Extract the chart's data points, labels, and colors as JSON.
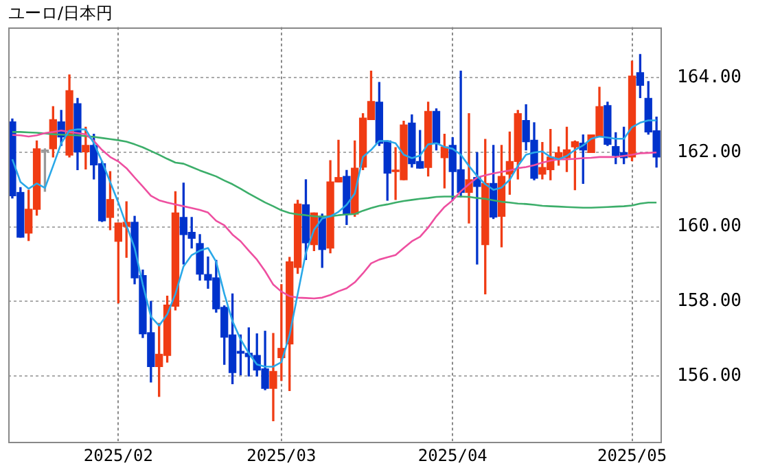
{
  "chart_data": {
    "type": "candlestick",
    "title": "ユーロ/日本円",
    "categories": [
      null,
      null,
      null,
      null,
      null,
      null,
      null,
      null,
      null,
      null,
      null,
      null,
      null,
      "2025/02",
      null,
      null,
      null,
      null,
      null,
      null,
      null,
      null,
      null,
      null,
      null,
      null,
      null,
      null,
      null,
      null,
      null,
      null,
      null,
      "2025/03",
      null,
      null,
      null,
      null,
      null,
      null,
      null,
      null,
      null,
      null,
      null,
      null,
      null,
      null,
      null,
      null,
      null,
      null,
      null,
      null,
      "2025/04",
      null,
      null,
      null,
      null,
      null,
      null,
      null,
      null,
      null,
      null,
      null,
      null,
      null,
      null,
      null,
      null,
      null,
      null,
      null,
      null,
      null,
      "2025/05",
      null,
      null,
      null
    ],
    "ohlc": [
      [
        162.81,
        162.89,
        160.77,
        160.83
      ],
      [
        160.92,
        161.05,
        159.72,
        159.72
      ],
      [
        159.83,
        160.98,
        159.63,
        160.47
      ],
      [
        160.47,
        162.3,
        160.31,
        162.09
      ],
      [
        162.02,
        162.09,
        160.95,
        162.02
      ],
      [
        162.09,
        163.22,
        161.87,
        162.87
      ],
      [
        162.81,
        163.12,
        162.18,
        162.41
      ],
      [
        161.92,
        164.07,
        161.87,
        163.65
      ],
      [
        163.3,
        163.44,
        161.53,
        162.01
      ],
      [
        162.01,
        162.67,
        161.55,
        162.18
      ],
      [
        162.18,
        162.48,
        161.28,
        161.66
      ],
      [
        161.69,
        161.75,
        160.14,
        160.16
      ],
      [
        160.25,
        161.48,
        159.92,
        160.73
      ],
      [
        159.61,
        160.1,
        157.96,
        160.1
      ],
      [
        160.01,
        160.67,
        159.18,
        160.12
      ],
      [
        160.12,
        160.28,
        158.47,
        158.63
      ],
      [
        158.69,
        158.84,
        157.03,
        157.13
      ],
      [
        157.16,
        158.0,
        155.84,
        156.25
      ],
      [
        156.25,
        157.41,
        155.45,
        156.58
      ],
      [
        156.55,
        158.14,
        156.37,
        157.9
      ],
      [
        157.87,
        160.94,
        157.77,
        160.37
      ],
      [
        160.25,
        161.17,
        159.0,
        159.79
      ],
      [
        159.85,
        160.25,
        159.43,
        159.69
      ],
      [
        159.55,
        159.79,
        158.57,
        158.73
      ],
      [
        158.72,
        159.19,
        158.35,
        158.57
      ],
      [
        158.63,
        159.1,
        157.71,
        157.8
      ],
      [
        157.84,
        157.88,
        156.31,
        157.04
      ],
      [
        157.1,
        158.2,
        155.79,
        156.09
      ],
      [
        156.66,
        157.1,
        156.03,
        156.61
      ],
      [
        156.61,
        157.29,
        156.0,
        156.52
      ],
      [
        156.55,
        157.13,
        156.0,
        156.16
      ],
      [
        156.19,
        157.2,
        155.63,
        155.67
      ],
      [
        155.67,
        157.14,
        154.8,
        156.12
      ],
      [
        156.49,
        158.45,
        155.88,
        156.74
      ],
      [
        156.86,
        159.18,
        155.61,
        159.06
      ],
      [
        158.91,
        160.71,
        158.75,
        160.61
      ],
      [
        160.59,
        161.26,
        159.12,
        159.57
      ],
      [
        159.52,
        160.37,
        159.36,
        160.37
      ],
      [
        160.28,
        160.34,
        158.91,
        159.39
      ],
      [
        159.43,
        161.77,
        159.3,
        161.2
      ],
      [
        161.2,
        162.32,
        161.2,
        161.32
      ],
      [
        161.35,
        161.51,
        160.06,
        160.34
      ],
      [
        160.34,
        162.3,
        160.28,
        161.57
      ],
      [
        161.6,
        163.03,
        161.53,
        162.91
      ],
      [
        162.87,
        164.17,
        162.87,
        163.36
      ],
      [
        163.34,
        163.87,
        162.18,
        162.24
      ],
      [
        162.3,
        162.3,
        160.71,
        161.44
      ],
      [
        161.48,
        162.12,
        160.73,
        161.52
      ],
      [
        161.26,
        162.83,
        161.26,
        162.73
      ],
      [
        162.78,
        163.0,
        161.6,
        161.69
      ],
      [
        161.75,
        162.58,
        161.57,
        161.57
      ],
      [
        161.59,
        163.34,
        161.36,
        163.09
      ],
      [
        163.09,
        163.16,
        162.06,
        162.24
      ],
      [
        161.85,
        162.48,
        161.04,
        162.14
      ],
      [
        162.18,
        162.39,
        160.71,
        161.48
      ],
      [
        161.53,
        164.17,
        160.8,
        160.92
      ],
      [
        160.92,
        163.03,
        160.1,
        161.26
      ],
      [
        161.32,
        161.99,
        159.0,
        161.08
      ],
      [
        159.52,
        162.34,
        158.2,
        161.16
      ],
      [
        161.16,
        162.18,
        160.22,
        160.26
      ],
      [
        160.28,
        162.18,
        159.46,
        161.35
      ],
      [
        161.41,
        162.54,
        160.87,
        161.75
      ],
      [
        161.75,
        163.12,
        161.28,
        163.03
      ],
      [
        162.85,
        163.27,
        162.06,
        162.28
      ],
      [
        162.32,
        162.79,
        161.26,
        161.3
      ],
      [
        161.41,
        162.26,
        161.28,
        161.59
      ],
      [
        161.53,
        162.61,
        161.26,
        161.87
      ],
      [
        161.81,
        162.14,
        161.65,
        161.99
      ],
      [
        161.85,
        162.67,
        161.48,
        162.06
      ],
      [
        162.14,
        162.3,
        160.99,
        162.28
      ],
      [
        162.24,
        162.46,
        161.16,
        162.06
      ],
      [
        161.99,
        162.46,
        161.99,
        162.46
      ],
      [
        162.42,
        163.74,
        162.42,
        163.22
      ],
      [
        163.25,
        163.34,
        162.18,
        162.21
      ],
      [
        162.15,
        162.52,
        161.69,
        161.91
      ],
      [
        161.99,
        162.67,
        161.69,
        161.85
      ],
      [
        161.87,
        164.44,
        161.77,
        164.04
      ],
      [
        164.13,
        164.62,
        163.46,
        163.79
      ],
      [
        163.44,
        163.89,
        162.48,
        162.54
      ],
      [
        162.57,
        162.94,
        161.6,
        161.87
      ]
    ],
    "colors": [
      "#0033cc",
      "#0033cc",
      "#f03c14",
      "#f03c14",
      "#999999",
      "#f03c14",
      "#0033cc",
      "#f03c14",
      "#0033cc",
      "#f03c14",
      "#0033cc",
      "#0033cc",
      "#f03c14",
      "#f03c14",
      "#f03c14",
      "#0033cc",
      "#0033cc",
      "#0033cc",
      "#f03c14",
      "#f03c14",
      "#f03c14",
      "#0033cc",
      "#0033cc",
      "#0033cc",
      "#0033cc",
      "#0033cc",
      "#0033cc",
      "#0033cc",
      "#0033cc",
      "#0033cc",
      "#0033cc",
      "#0033cc",
      "#f03c14",
      "#f03c14",
      "#f03c14",
      "#f03c14",
      "#0033cc",
      "#f03c14",
      "#0033cc",
      "#f03c14",
      "#f03c14",
      "#0033cc",
      "#f03c14",
      "#f03c14",
      "#f03c14",
      "#0033cc",
      "#0033cc",
      "#f03c14",
      "#f03c14",
      "#0033cc",
      "#0033cc",
      "#f03c14",
      "#0033cc",
      "#f03c14",
      "#0033cc",
      "#0033cc",
      "#f03c14",
      "#0033cc",
      "#f03c14",
      "#0033cc",
      "#f03c14",
      "#f03c14",
      "#f03c14",
      "#0033cc",
      "#0033cc",
      "#f03c14",
      "#f03c14",
      "#f03c14",
      "#f03c14",
      "#f03c14",
      "#0033cc",
      "#f03c14",
      "#f03c14",
      "#0033cc",
      "#0033cc",
      "#0033cc",
      "#f03c14",
      "#0033cc",
      "#0033cc",
      "#0033cc"
    ],
    "series": [
      {
        "type": "line",
        "color": "#2aa8e8",
        "values": [
          161.81,
          161.2,
          161.02,
          161.16,
          161.04,
          161.63,
          162.24,
          162.58,
          162.61,
          162.61,
          162.24,
          161.75,
          161.2,
          160.65,
          160.04,
          159.43,
          158.45,
          157.59,
          157.35,
          157.65,
          158.2,
          158.94,
          159.24,
          159.36,
          159.43,
          159.06,
          158.2,
          157.47,
          156.98,
          156.61,
          156.31,
          156.25,
          156.25,
          156.37,
          157.1,
          158.2,
          159.3,
          159.92,
          160.22,
          160.28,
          160.4,
          160.59,
          160.89,
          161.87,
          162.06,
          162.3,
          162.3,
          162.24,
          161.93,
          161.84,
          161.91,
          162.21,
          162.24,
          162.14,
          162.09,
          161.93,
          161.63,
          161.36,
          161.14,
          160.99,
          161.05,
          161.26,
          161.63,
          161.93,
          161.99,
          162.02,
          161.87,
          161.81,
          161.9,
          162.06,
          162.18,
          162.36,
          162.42,
          162.39,
          162.36,
          162.36,
          162.67,
          162.79,
          162.85,
          162.85
        ]
      },
      {
        "type": "line",
        "color": "#ee4fa0",
        "values": [
          162.46,
          162.45,
          162.42,
          162.45,
          162.51,
          162.54,
          162.58,
          162.54,
          162.51,
          162.48,
          162.3,
          162.06,
          161.87,
          161.75,
          161.57,
          161.32,
          161.08,
          160.83,
          160.71,
          160.65,
          160.6,
          160.55,
          160.5,
          160.45,
          160.38,
          160.16,
          160.04,
          159.79,
          159.61,
          159.36,
          159.12,
          158.81,
          158.45,
          158.26,
          158.14,
          158.1,
          158.09,
          158.08,
          158.1,
          158.17,
          158.27,
          158.35,
          158.51,
          158.75,
          159.02,
          159.12,
          159.18,
          159.24,
          159.43,
          159.61,
          159.73,
          159.98,
          160.28,
          160.53,
          160.71,
          160.95,
          161.14,
          161.32,
          161.38,
          161.43,
          161.47,
          161.51,
          161.57,
          161.6,
          161.65,
          161.72,
          161.77,
          161.81,
          161.81,
          161.82,
          161.84,
          161.85,
          161.87,
          161.87,
          161.87,
          161.9,
          161.93,
          161.97,
          161.98,
          161.99
        ]
      },
      {
        "type": "line",
        "color": "#3cae6a",
        "values": [
          162.54,
          162.54,
          162.53,
          162.52,
          162.5,
          162.48,
          162.47,
          162.46,
          162.45,
          162.43,
          162.41,
          162.38,
          162.35,
          162.32,
          162.28,
          162.21,
          162.13,
          162.03,
          161.93,
          161.82,
          161.72,
          161.69,
          161.6,
          161.51,
          161.43,
          161.35,
          161.24,
          161.14,
          161.02,
          160.89,
          160.77,
          160.65,
          160.55,
          160.44,
          160.37,
          160.33,
          160.31,
          160.28,
          160.27,
          160.28,
          160.31,
          160.33,
          160.34,
          160.43,
          160.5,
          160.56,
          160.6,
          160.65,
          160.69,
          160.72,
          160.75,
          160.77,
          160.8,
          160.81,
          160.81,
          160.81,
          160.8,
          160.77,
          160.75,
          160.71,
          160.67,
          160.65,
          160.62,
          160.61,
          160.59,
          160.56,
          160.55,
          160.54,
          160.53,
          160.52,
          160.51,
          160.51,
          160.52,
          160.53,
          160.54,
          160.55,
          160.57,
          160.62,
          160.65,
          160.65
        ]
      }
    ],
    "ylim": [
      154.25,
      165.35
    ],
    "yticks": [
      {
        "value": 156,
        "label": "156.00"
      },
      {
        "value": 158,
        "label": "158.00"
      },
      {
        "value": 160,
        "label": "160.00"
      },
      {
        "value": 162,
        "label": "162.00"
      },
      {
        "value": 164,
        "label": "164.00"
      }
    ],
    "grid": true,
    "legend": false
  }
}
